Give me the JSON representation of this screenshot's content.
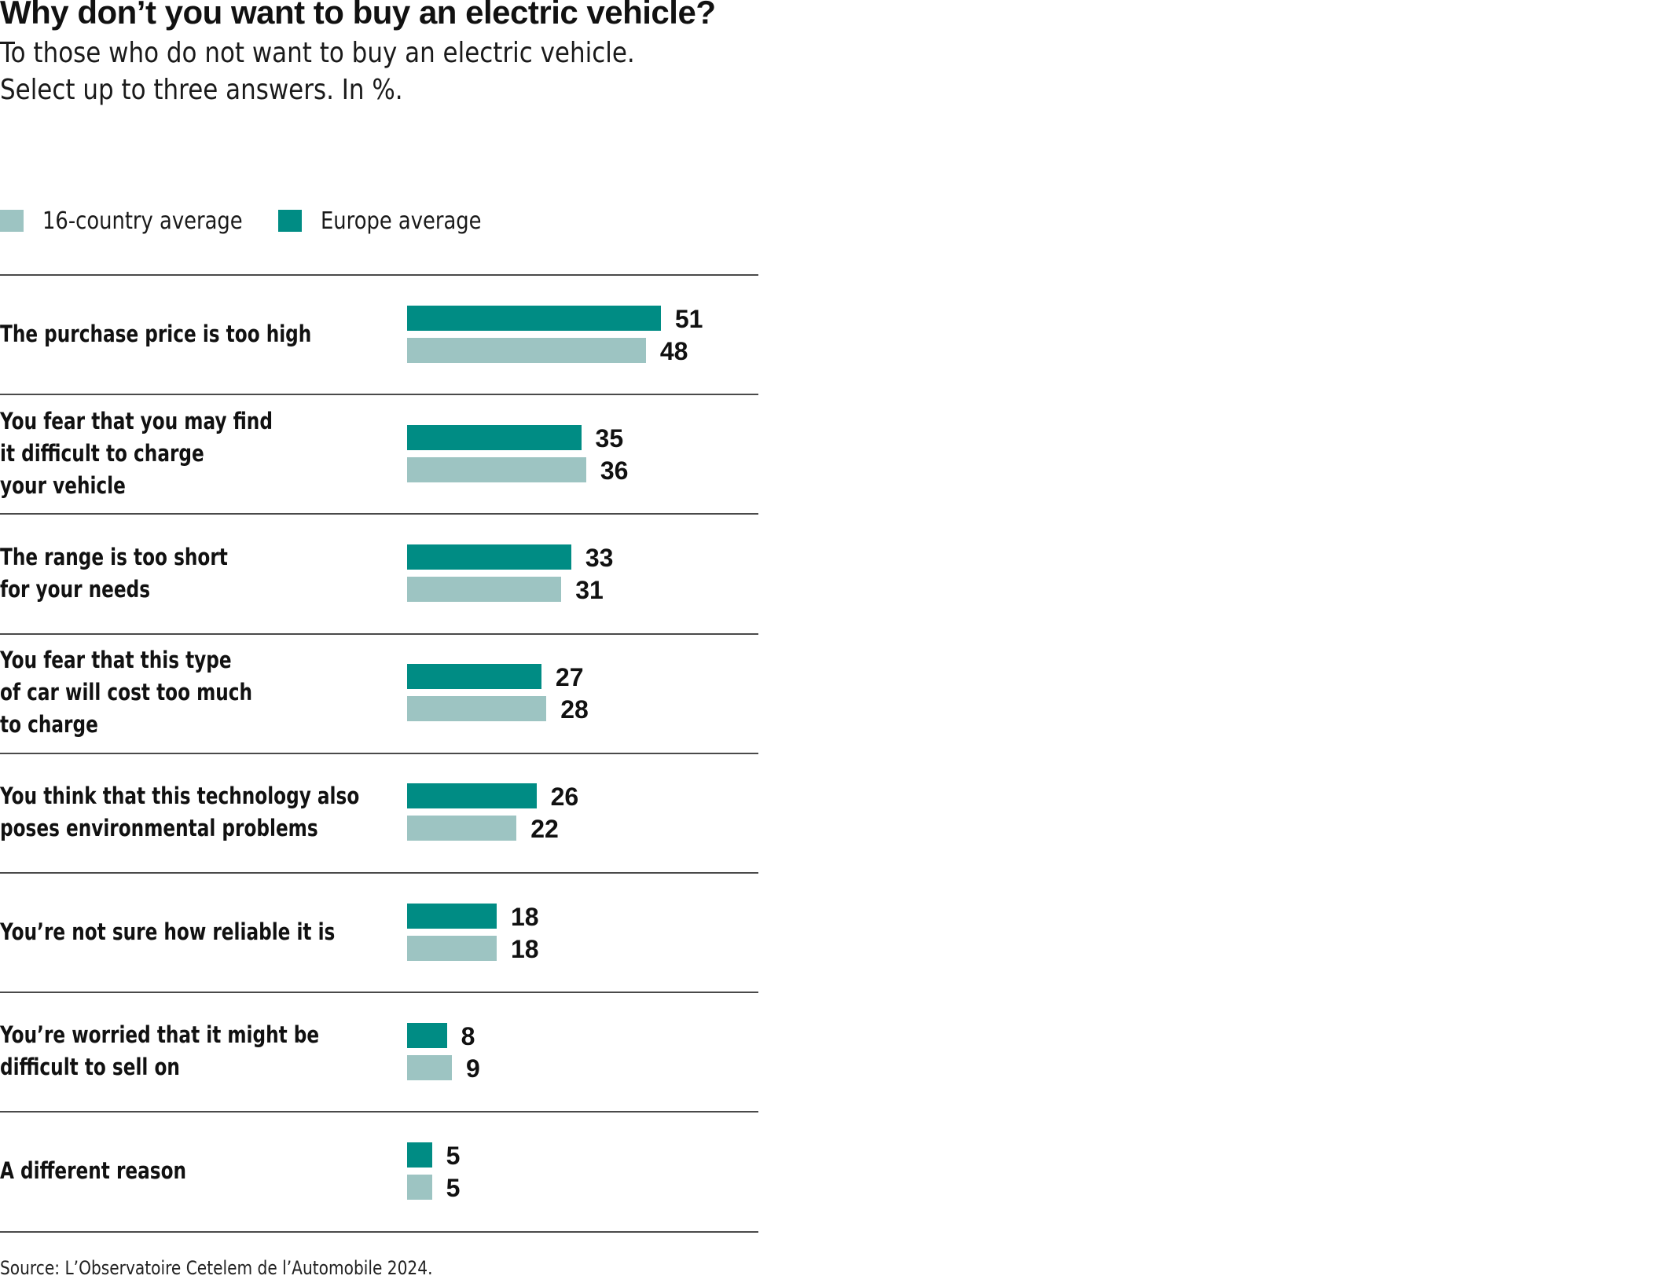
{
  "header": {
    "title": "Why don’t you want to buy an electric vehicle?",
    "subtitle_line1": "To those who do not want to buy an electric vehicle.",
    "subtitle_line2": "Select up to three answers. In %."
  },
  "legend": [
    {
      "label": "16-country average",
      "color": "#9dc4c2"
    },
    {
      "label": "Europe average",
      "color": "#008c84"
    }
  ],
  "footer": {
    "source": "Source: L’Observatoire Cetelem de l’Automobile 2024."
  },
  "chart_data": {
    "type": "bar",
    "orientation": "horizontal",
    "title": "Why don’t you want to buy an electric vehicle?",
    "subtitle": "To those who do not want to buy an electric vehicle. Select up to three answers. In %.",
    "xlabel": "",
    "ylabel": "",
    "unit": "%",
    "xlim": [
      0,
      60
    ],
    "grid": false,
    "legend_position": "top-left",
    "categories": [
      [
        "The purchase price is too high"
      ],
      [
        "You fear that you may find",
        "it difficult to charge",
        "your vehicle"
      ],
      [
        "The range is too short",
        "for your needs"
      ],
      [
        "You fear that this type",
        "of car will cost too much",
        "to charge"
      ],
      [
        "You think that this technology also",
        "poses environmental problems"
      ],
      [
        "You’re not sure how reliable it is"
      ],
      [
        "You’re worried that it might be",
        "difficult to sell on"
      ],
      [
        "A different reason"
      ]
    ],
    "series": [
      {
        "name": "Europe average",
        "color": "#008c84",
        "values": [
          51,
          35,
          33,
          27,
          26,
          18,
          8,
          5
        ]
      },
      {
        "name": "16-country average",
        "color": "#9dc4c2",
        "values": [
          48,
          36,
          31,
          28,
          22,
          18,
          9,
          5
        ]
      }
    ],
    "source": "Source: L’Observatoire Cetelem de l’Automobile 2024."
  }
}
